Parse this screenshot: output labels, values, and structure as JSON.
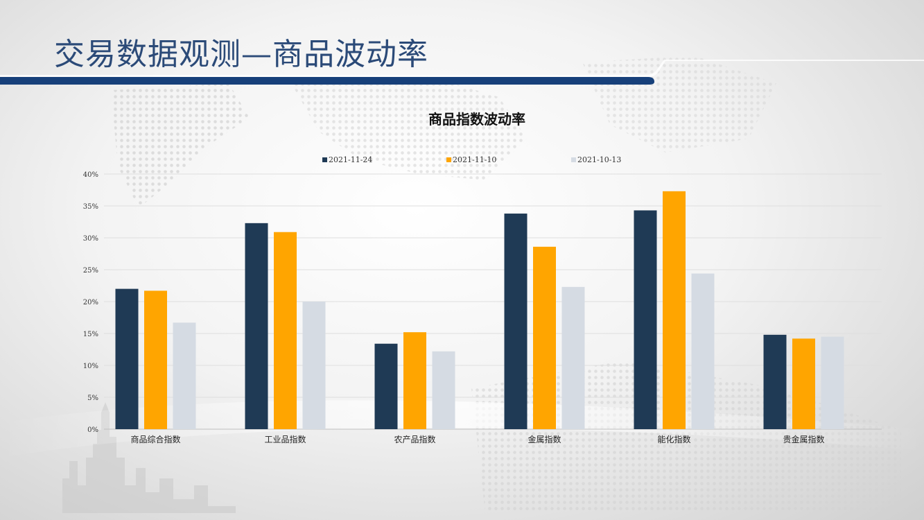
{
  "slide": {
    "title": "交易数据观测—商品波动率"
  },
  "colors": {
    "title": "#2b4a78",
    "bar_band": "#17407a"
  },
  "chart_data": {
    "type": "bar",
    "title": "商品指数波动率",
    "xlabel": "",
    "ylabel": "",
    "ylim": [
      0,
      0.4
    ],
    "ytick_step": 0.05,
    "ytick_format": "percent",
    "grid": true,
    "legend_position": "top",
    "categories": [
      "商品综合指数",
      "工业品指数",
      "农产品指数",
      "金属指数",
      "能化指数",
      "贵金属指数"
    ],
    "series": [
      {
        "name": "2021-11-24",
        "color": "#1f3a55",
        "values": [
          0.22,
          0.323,
          0.134,
          0.338,
          0.343,
          0.148
        ]
      },
      {
        "name": "2021-11-10",
        "color": "#ffa500",
        "values": [
          0.217,
          0.309,
          0.152,
          0.286,
          0.373,
          0.142
        ]
      },
      {
        "name": "2021-10-13",
        "color": "#d5dbe3",
        "values": [
          0.167,
          0.2,
          0.122,
          0.223,
          0.244,
          0.145
        ]
      }
    ]
  }
}
